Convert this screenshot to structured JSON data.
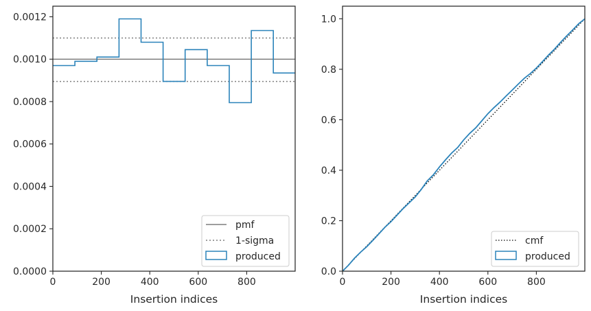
{
  "colors": {
    "produced": "#2b83ba",
    "pmf": "#7f7f7f",
    "sigma": "#7f7f7f",
    "cmf": "#000000",
    "axes": "#262626"
  },
  "chart_data": [
    {
      "type": "histogram-step",
      "xlabel": "Insertion indices",
      "ylabel": "",
      "xlim": [
        0,
        1000
      ],
      "ylim": [
        0,
        0.00125
      ],
      "xticks": [
        0,
        200,
        400,
        600,
        800
      ],
      "xtick_labels": [
        "0",
        "200",
        "400",
        "600",
        "800"
      ],
      "yticks": [
        0,
        0.0002,
        0.0004,
        0.0006,
        0.0008,
        0.001,
        0.0012
      ],
      "ytick_labels": [
        "0.0000",
        "0.0002",
        "0.0004",
        "0.0006",
        "0.0008",
        "0.0010",
        "0.0012"
      ],
      "bin_edges": [
        0,
        91,
        182,
        273,
        364,
        455,
        546,
        637,
        728,
        819,
        910,
        1000
      ],
      "bin_values": [
        0.00097,
        0.00099,
        0.00101,
        0.00119,
        0.00108,
        0.000895,
        0.001045,
        0.00097,
        0.000795,
        0.001135,
        0.000935
      ],
      "pmf": 0.001,
      "sigma_upper": 0.0011,
      "sigma_lower": 0.000895,
      "legend": {
        "position": "lower right",
        "entries": [
          {
            "label": "pmf",
            "style": "solid-line"
          },
          {
            "label": "1-sigma",
            "style": "dotted-line"
          },
          {
            "label": "produced",
            "style": "box"
          }
        ]
      }
    },
    {
      "type": "line",
      "xlabel": "Insertion indices",
      "ylabel": "",
      "xlim": [
        0,
        1000
      ],
      "ylim": [
        0,
        1.05
      ],
      "xticks": [
        0,
        200,
        400,
        600,
        800
      ],
      "xtick_labels": [
        "0",
        "200",
        "400",
        "600",
        "800"
      ],
      "yticks": [
        0,
        0.2,
        0.4,
        0.6,
        0.8,
        1.0
      ],
      "ytick_labels": [
        "0.0",
        "0.2",
        "0.4",
        "0.6",
        "0.8",
        "1.0"
      ],
      "cmf": {
        "x": [
          0,
          1000
        ],
        "y": [
          0,
          1.0
        ]
      },
      "produced": {
        "x": [
          0,
          25,
          50,
          75,
          100,
          125,
          150,
          175,
          200,
          225,
          250,
          275,
          300,
          325,
          350,
          375,
          400,
          425,
          450,
          475,
          500,
          525,
          550,
          575,
          600,
          625,
          650,
          675,
          700,
          725,
          750,
          775,
          800,
          825,
          850,
          875,
          900,
          925,
          950,
          975,
          1000
        ],
        "y": [
          0,
          0.024,
          0.052,
          0.076,
          0.097,
          0.122,
          0.148,
          0.174,
          0.196,
          0.222,
          0.248,
          0.271,
          0.294,
          0.324,
          0.358,
          0.382,
          0.413,
          0.441,
          0.468,
          0.49,
          0.52,
          0.546,
          0.568,
          0.596,
          0.624,
          0.648,
          0.67,
          0.694,
          0.717,
          0.741,
          0.764,
          0.783,
          0.805,
          0.83,
          0.856,
          0.88,
          0.907,
          0.932,
          0.956,
          0.981,
          1.0
        ]
      },
      "legend": {
        "position": "lower right",
        "entries": [
          {
            "label": "cmf",
            "style": "dotted-line"
          },
          {
            "label": "produced",
            "style": "box"
          }
        ]
      }
    }
  ]
}
